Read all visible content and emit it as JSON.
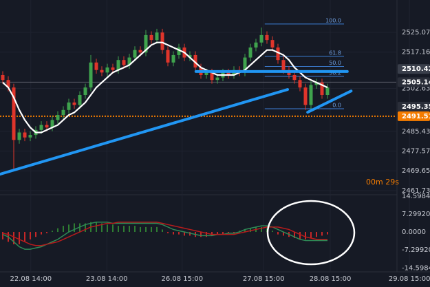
{
  "chart_data": [
    {
      "type": "candlestick",
      "xlim": [
        -0.5,
        71.5
      ],
      "ylim": [
        2460.06,
        2538.02
      ],
      "yticks": [
        2525.07,
        2517.16,
        2502.63,
        2485.43,
        2477.57,
        2469.65,
        2461.73
      ],
      "xticks": [
        {
          "value": 5.1,
          "label": "22.08 14:00"
        },
        {
          "value": 18.9,
          "label": "23.08 14:00"
        },
        {
          "value": 32.6,
          "label": "26.08 15:00"
        },
        {
          "value": 47.4,
          "label": "27.08 15:00"
        },
        {
          "value": 59.5,
          "label": "28.08 15:00"
        },
        {
          "value": 73.9,
          "label": "29.08 15:00"
        }
      ],
      "grid": true,
      "up_color": "#3fa34d",
      "down_color": "#e0352b",
      "open": [
        2508,
        2506,
        2503,
        2482,
        2485,
        2483,
        2484,
        2486,
        2488,
        2487,
        2490,
        2492,
        2494,
        2497,
        2496,
        2500,
        2503,
        2513,
        2510,
        2509,
        2511,
        2510,
        2514,
        2512,
        2515,
        2518,
        2517,
        2524,
        2522,
        2525,
        2518,
        2513,
        2516,
        2519,
        2515,
        2516,
        2511,
        2508,
        2509,
        2506,
        2507,
        2509,
        2508,
        2510,
        2509,
        2515,
        2519,
        2521,
        2524,
        2522,
        2519,
        2514,
        2510,
        2508,
        2506,
        2503,
        2496,
        2504,
        2505,
        2500
      ],
      "high": [
        2509.5,
        2507.5,
        2504.5,
        2486.5,
        2486.5,
        2485.5,
        2487.5,
        2489.5,
        2489.5,
        2491.5,
        2493.5,
        2495.5,
        2498.5,
        2498.5,
        2501.5,
        2504.5,
        2516,
        2514.5,
        2511.5,
        2512.5,
        2512.5,
        2515.5,
        2515.5,
        2516.5,
        2519.5,
        2519.5,
        2526,
        2525.5,
        2526.5,
        2526.5,
        2519.5,
        2517.5,
        2520.5,
        2520.5,
        2517.5,
        2517.5,
        2512.5,
        2510.5,
        2510.5,
        2508.5,
        2510.5,
        2510.5,
        2511.5,
        2511.5,
        2516.5,
        2520.5,
        2522.5,
        2527,
        2525.5,
        2523.5,
        2520.5,
        2515.5,
        2511.5,
        2509.5,
        2507.5,
        2504.5,
        2505.5,
        2506.5,
        2506.5,
        2504.5
      ],
      "low": [
        2504.5,
        2501.5,
        2470,
        2480.5,
        2481.5,
        2481.5,
        2482.5,
        2484.5,
        2485.5,
        2485.5,
        2488.5,
        2490.5,
        2492.5,
        2494.5,
        2494.5,
        2498.5,
        2501.5,
        2508.5,
        2507.5,
        2507.5,
        2508.5,
        2508.5,
        2510.5,
        2510.5,
        2513.5,
        2515.5,
        2515.5,
        2520.5,
        2520.5,
        2516.5,
        2511.5,
        2511.5,
        2514.5,
        2513.5,
        2513.5,
        2509.5,
        2506.5,
        2506.5,
        2504.5,
        2504.5,
        2505.5,
        2506.5,
        2506.5,
        2507.5,
        2507.5,
        2513.5,
        2517.5,
        2519.5,
        2520.5,
        2517.5,
        2512.5,
        2508.5,
        2506.5,
        2504.5,
        2501.5,
        2494,
        2494.5,
        2502.5,
        2498.5,
        2498.5
      ],
      "close": [
        2506,
        2503,
        2482,
        2485,
        2483,
        2484,
        2486,
        2488,
        2487,
        2490,
        2492,
        2494,
        2497,
        2496,
        2500,
        2503,
        2513,
        2510,
        2509,
        2511,
        2510,
        2514,
        2512,
        2515,
        2518,
        2517,
        2524,
        2522,
        2525,
        2518,
        2513,
        2516,
        2519,
        2515,
        2516,
        2511,
        2508,
        2509,
        2506,
        2507,
        2509,
        2508,
        2510,
        2509,
        2515,
        2519,
        2521,
        2524,
        2522,
        2519,
        2514,
        2510,
        2508,
        2506,
        2503,
        2496,
        2504,
        2505,
        2500,
        2503
      ],
      "ma": {
        "color": "#ffffff",
        "values": [
          2505,
          2503,
          2499,
          2494,
          2490,
          2487,
          2485,
          2485,
          2486,
          2487,
          2488,
          2490,
          2492,
          2493,
          2495,
          2497,
          2500,
          2503,
          2505,
          2507,
          2509,
          2510,
          2511,
          2512,
          2514,
          2516,
          2518,
          2520,
          2521,
          2521,
          2520,
          2519,
          2518,
          2517,
          2515,
          2513,
          2511,
          2510,
          2509,
          2508,
          2508,
          2508,
          2508,
          2509,
          2510,
          2512,
          2514,
          2516,
          2518,
          2518,
          2517,
          2516,
          2514,
          2511,
          2509,
          2507,
          2506,
          2505,
          2504,
          2503
        ]
      },
      "price_markers": [
        {
          "value": 2510.42,
          "color": "#3a3f4b",
          "line": "none"
        },
        {
          "value": 2505.14,
          "color": "#2a2e39",
          "line": "solid"
        },
        {
          "value": 2495.35,
          "color": "#2a2e39",
          "line": "none"
        },
        {
          "value": 2491.51,
          "color": "#f57c00",
          "line": "dotted"
        }
      ],
      "trend_lines": [
        {
          "color": "#2196f3",
          "x": [
            -0.5,
            51.75
          ],
          "y": [
            2468.3,
            2502.2
          ]
        },
        {
          "color": "#2196f3",
          "x": [
            55.4,
            63.3
          ],
          "y": [
            2493.1,
            2501.6
          ]
        },
        {
          "color": "#2196f3",
          "x": [
            35.1,
            62.6
          ],
          "y": [
            2509.4,
            2509.4
          ]
        }
      ],
      "fib": {
        "color": "#3d7fd6",
        "x": [
          47.6,
          62
        ],
        "high": 2528.4,
        "low": 2494.5,
        "levels": [
          {
            "value": 100,
            "label": "100.0"
          },
          {
            "value": 61.8,
            "label": "61.8"
          },
          {
            "value": 50,
            "label": "50.0"
          },
          {
            "value": 38.2,
            "label": "38.2"
          },
          {
            "value": 0,
            "label": "0.0"
          }
        ]
      },
      "countdown": "00m 29s"
    },
    {
      "type": "macd",
      "ylim": [
        -16.2,
        15.1
      ],
      "yticks": [
        14.5984,
        {
          "value": 7.2992,
          "label": "7.29920"
        },
        {
          "value": 0,
          "label": "0.0000"
        },
        {
          "value": -7.2992,
          "label": "-7.29920"
        },
        -14.5984
      ],
      "histogram": {
        "up_color": "#2e7d32",
        "down_color": "#c62828",
        "values": [
          -3,
          -4,
          -5,
          -5,
          -4,
          -3,
          -2,
          -1,
          -0.5,
          0.5,
          1.5,
          2.5,
          3,
          3.5,
          3.5,
          3.5,
          4,
          4,
          3.5,
          3,
          3,
          2.5,
          2.5,
          2.5,
          2.5,
          2,
          2,
          2,
          2,
          1,
          -0.5,
          -1,
          -1,
          -1.5,
          -1.5,
          -2,
          -2,
          -2,
          -1.5,
          -1,
          -1,
          -0.5,
          -0.5,
          0.5,
          1,
          1.5,
          2,
          2,
          1.5,
          0.5,
          -1,
          -1.5,
          -2,
          -2.5,
          -3,
          -3,
          -2.5,
          -2,
          -1.5,
          -1
        ]
      },
      "series": [
        {
          "color": "#2e8b57",
          "values": [
            -1,
            -2,
            -4,
            -6,
            -7,
            -7,
            -6.5,
            -6,
            -5,
            -4,
            -3,
            -1.5,
            0,
            1,
            2,
            3,
            3.5,
            4,
            4,
            4,
            3.5,
            3.5,
            3.5,
            3.5,
            3.5,
            3.5,
            3.5,
            3.5,
            3.5,
            3,
            2,
            1,
            0.5,
            0,
            -0.5,
            -1,
            -1.5,
            -1.5,
            -1.5,
            -1,
            -1,
            -0.5,
            -0.5,
            0,
            1,
            1.5,
            2,
            2.5,
            2.5,
            2,
            1,
            0,
            -1,
            -2,
            -3,
            -3.5,
            -3.5,
            -3.5,
            -3.5,
            -3.5
          ]
        },
        {
          "color": "#b71c1c",
          "values": [
            -0.5,
            -1,
            -2,
            -3,
            -4,
            -5,
            -5.5,
            -5.5,
            -5,
            -4.5,
            -4,
            -3,
            -2,
            -1,
            0,
            1,
            2,
            2.5,
            3,
            3.5,
            3.5,
            4,
            4,
            4,
            4,
            4,
            4,
            4,
            4,
            3.5,
            3,
            2.5,
            2,
            1.5,
            1,
            0.5,
            0,
            -0.5,
            -1,
            -1,
            -1,
            -1,
            -1,
            -0.5,
            0,
            0.5,
            1,
            1.5,
            2,
            2,
            2,
            1.5,
            1,
            0,
            -1,
            -2,
            -2.5,
            -3,
            -3,
            -3
          ]
        }
      ]
    }
  ]
}
